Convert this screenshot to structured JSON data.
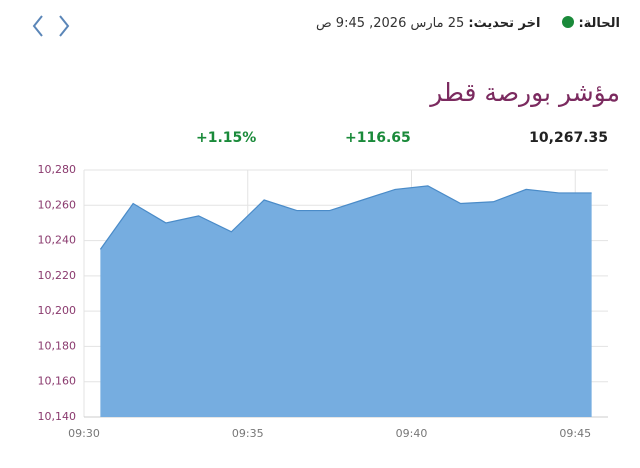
{
  "header": {
    "status_label": "الحالة:",
    "update_label": "اخر تحديث:",
    "update_time": "25 مارس 2026, 9:45 ص",
    "title": "مؤشر بورصة قطر"
  },
  "stats": {
    "last": "10,267.35",
    "change": "+116.65",
    "change_percent": "+1.15%"
  },
  "chart_data": {
    "type": "area",
    "color": "#76ade0",
    "line_color": "#4a8bc8",
    "grid": true,
    "x": [
      570.5,
      571.5,
      572.5,
      573.5,
      574.5,
      575.5,
      576.5,
      577.5,
      578.5,
      579.5,
      580.5,
      581.5,
      582.5,
      583.5,
      584.5,
      585.5
    ],
    "values": [
      10235,
      10261,
      10250,
      10254,
      10245,
      10263,
      10257,
      10257,
      10263,
      10269,
      10271,
      10261,
      10262,
      10269,
      10267,
      10267
    ],
    "xlim": [
      570,
      586
    ],
    "xticks": [
      {
        "value": 570,
        "label": "09:30"
      },
      {
        "value": 575,
        "label": "09:35"
      },
      {
        "value": 580,
        "label": "09:40"
      },
      {
        "value": 585,
        "label": "09:45"
      }
    ],
    "ylim": [
      10140,
      10280
    ],
    "yticks": [
      {
        "value": 10140,
        "label": "10,140"
      },
      {
        "value": 10160,
        "label": "10,160"
      },
      {
        "value": 10180,
        "label": "10,180"
      },
      {
        "value": 10200,
        "label": "10,200"
      },
      {
        "value": 10220,
        "label": "10,220"
      },
      {
        "value": 10240,
        "label": "10,240"
      },
      {
        "value": 10260,
        "label": "10,260"
      },
      {
        "value": 10280,
        "label": "10,280"
      }
    ]
  }
}
